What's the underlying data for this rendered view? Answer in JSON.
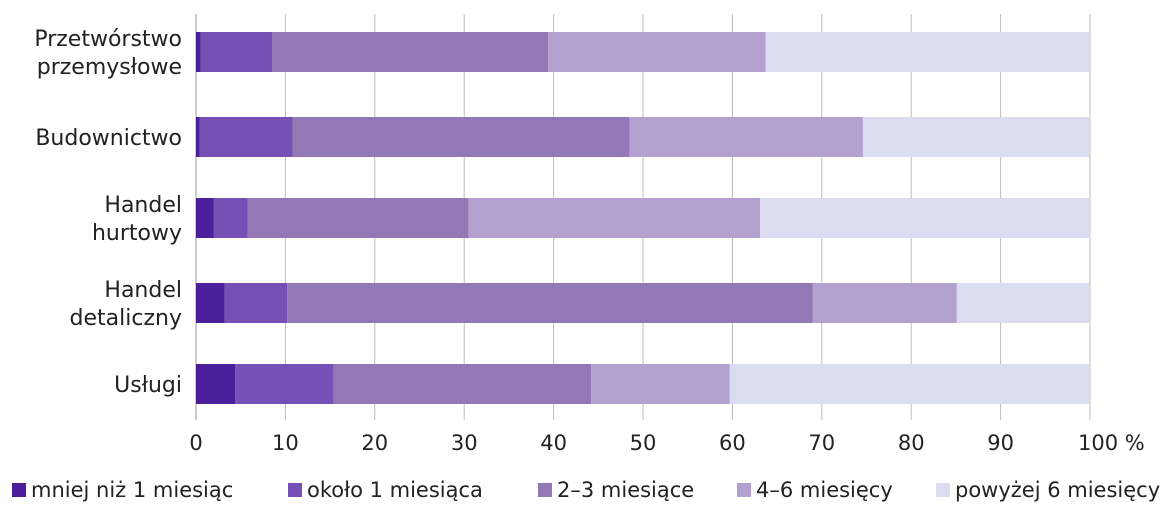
{
  "chart_data": {
    "type": "bar",
    "orientation": "horizontal",
    "stacked": true,
    "percent_stacked": true,
    "title": "",
    "xlabel": "",
    "ylabel": "",
    "x_unit": "%",
    "xlim": [
      0,
      100
    ],
    "x_ticks": [
      "0",
      "10",
      "20",
      "30",
      "40",
      "50",
      "60",
      "70",
      "80",
      "90",
      "100 %"
    ],
    "grid": "vertical",
    "legend_position": "bottom",
    "categories": [
      [
        "Przetwórstwo",
        "przemysłowe"
      ],
      [
        "Budownictwo"
      ],
      [
        "Handel",
        "hurtowy"
      ],
      [
        "Handel",
        "detaliczny"
      ],
      [
        "Usługi"
      ]
    ],
    "series": [
      {
        "name": "mniej niż 1 miesiąc",
        "color": "#4b1f9a",
        "values": [
          0.5,
          0.4,
          2.0,
          3.2,
          4.4
        ]
      },
      {
        "name": "około 1 miesiąca",
        "color": "#7650b4",
        "values": [
          8.0,
          10.4,
          3.8,
          7.0,
          11.0
        ]
      },
      {
        "name": "2–3 miesiące",
        "color": "#9478b6",
        "values": [
          30.9,
          37.7,
          24.7,
          58.8,
          28.8
        ]
      },
      {
        "name": "4–6 miesięcy",
        "color": "#b3a1d0",
        "values": [
          24.3,
          26.1,
          32.6,
          16.1,
          15.5
        ]
      },
      {
        "name": "powyżej 6 miesięcy",
        "color": "#dbdcf0",
        "values": [
          36.3,
          25.4,
          36.9,
          14.9,
          40.3
        ]
      }
    ]
  }
}
